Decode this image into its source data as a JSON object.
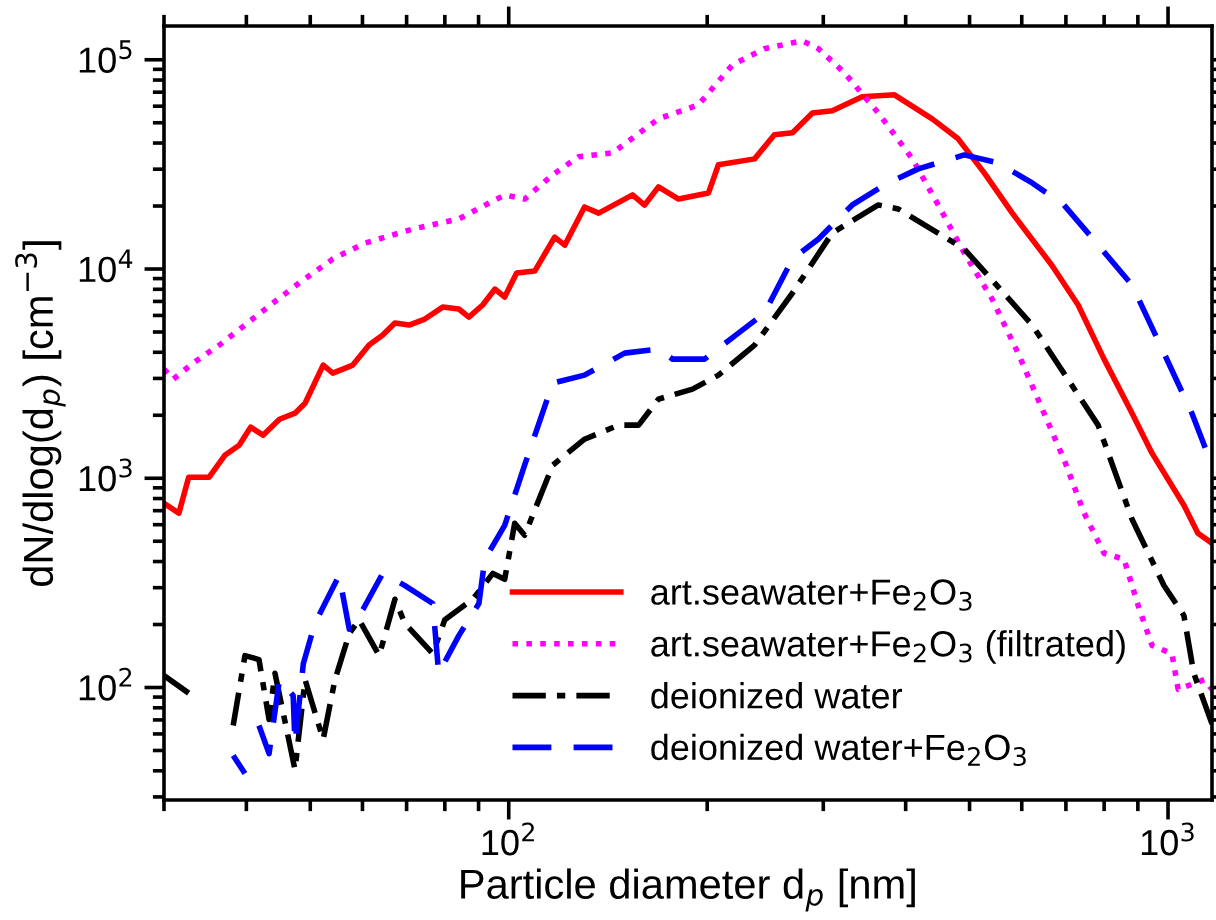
{
  "chart_data": {
    "type": "line",
    "xlabel": "Particle diameter d$_{p}$ [nm]",
    "ylabel": "dN/dlog(d$_{p}$) [cm$^{−3}$]",
    "log": "xy",
    "xlim": [
      30,
      1166
    ],
    "ylim": [
      29,
      145000
    ],
    "xticks": [
      {
        "value": 100,
        "label": "10$^{2}$"
      },
      {
        "value": 1000,
        "label": "10$^{3}$"
      }
    ],
    "yticks": [
      {
        "value": 100,
        "label": "10$^{2}$"
      },
      {
        "value": 1000,
        "label": "10$^{3}$"
      },
      {
        "value": 10000,
        "label": "10$^{4}$"
      },
      {
        "value": 100000,
        "label": "10$^{5}$"
      }
    ],
    "grid": false,
    "legend": "bottom right",
    "marker": "none",
    "series": [
      {
        "name": "art.seawater+Fe$_{2}$O$_{3}$",
        "color": "#ff0000",
        "line_style": "solid",
        "x": [
          30,
          31.6,
          32.7,
          35.1,
          37.1,
          39.0,
          40.6,
          42.4,
          44.9,
          47.4,
          49.1,
          52.3,
          54.1,
          58.0,
          61.4,
          64.4,
          67.2,
          70.6,
          74.6,
          79.4,
          84.0,
          87.0,
          91.3,
          95.3,
          98.6,
          102.8,
          109.5,
          117.4,
          121.6,
          130.3,
          136.9,
          154.1,
          160.7,
          168.7,
          181.0,
          200.9,
          208.0,
          236.0,
          252.9,
          269.4,
          288.8,
          309.6,
          343.6,
          384.6,
          438.8,
          480.5,
          526.3,
          580.4,
          666.8,
          730.6,
          799.8,
          881.9,
          945.6,
          1057,
          1110,
          1166
        ],
        "values": [
          759,
          681,
          1011,
          1011,
          1288,
          1438,
          1754,
          1606,
          1915,
          2046,
          2284,
          3475,
          3180,
          3475,
          4329,
          4833,
          5520,
          5395,
          5765,
          6577,
          6440,
          5890,
          6730,
          8020,
          7350,
          9570,
          9780,
          14200,
          13000,
          19800,
          18500,
          22600,
          20200,
          24700,
          21600,
          23100,
          31500,
          33600,
          43800,
          44800,
          55700,
          57000,
          66500,
          68000,
          52200,
          41900,
          28800,
          18500,
          10400,
          6730,
          3710,
          2046,
          1318,
          743,
          546,
          489
        ]
      },
      {
        "name": "art.seawater+Fe$_{2}$O$_{3}$ (filtrated)",
        "color": "#ff00ff",
        "line_style": "dotted",
        "x": [
          30,
          31.0,
          33.2,
          36.4,
          39.8,
          43.9,
          48.1,
          54.1,
          60.5,
          71.6,
          84.0,
          98.6,
          105.7,
          116.6,
          127.6,
          143.7,
          168.7,
          194.0,
          218.5,
          244.2,
          278.8,
          295.0,
          322.9,
          363.6,
          409.5,
          448.3,
          490.8,
          541.1,
          592.4,
          648.6,
          695.2,
          746.1,
          799.8,
          857.7,
          900.8,
          945.6,
          1014,
          1036,
          1135,
          1166
        ],
        "values": [
          3324,
          2977,
          3550,
          4330,
          5400,
          6880,
          8570,
          11170,
          13300,
          15540,
          17350,
          22600,
          21600,
          28200,
          34400,
          35900,
          52200,
          60900,
          94600,
          112900,
          123300,
          112900,
          86700,
          55700,
          33600,
          20200,
          11930,
          7180,
          3960,
          2046,
          1233,
          681,
          438,
          410,
          247,
          159,
          145,
          98,
          109,
          98
        ]
      },
      {
        "name": "deionized water",
        "color": "#000000",
        "line_style": "dashdot",
        "x": [
          30,
          32.7,
          35.0,
          38.2,
          39.8,
          41.8,
          43.3,
          44.2,
          47.4,
          49.1,
          52.3,
          54.5,
          57.3,
          59.3,
          63.6,
          67.2,
          69.6,
          76.7,
          80.0,
          88.2,
          94.6,
          98.6,
          102.1,
          105.7,
          116.6,
          130.3,
          146.8,
          157.4,
          168.7,
          190.0,
          208.0,
          236.0,
          269.4,
          309.6,
          363.6,
          389.9,
          490.8,
          622.2,
          783.4,
          881.9,
          985.9,
          1057,
          1094,
          1166
        ],
        "values": [
          114,
          94,
          null,
          65.8,
          142,
          136,
          70.3,
          117,
          40.5,
          109,
          56.4,
          109,
          181,
          211,
          142,
          264,
          202,
          145,
          211,
          264,
          351,
          329,
          609,
          534,
          1154,
          1537,
          1794,
          1794,
          2388,
          2667,
          3111,
          4330,
          7680,
          14870,
          20240,
          19370,
          12470,
          5400,
          1794,
          637,
          307,
          221,
          117,
          67
        ]
      },
      {
        "name": "deionized water+Fe$_{2}$O$_{3}$",
        "color": "#0000ff",
        "line_style": "dashed",
        "x": [
          38.2,
          39.8,
          41.0,
          41.8,
          43.3,
          44.9,
          47.1,
          47.4,
          48.8,
          50.8,
          55.3,
          57.3,
          60.1,
          64.4,
          69.6,
          76.7,
          78.3,
          84.0,
          90.1,
          92.0,
          98.6,
          105.7,
          116.6,
          130.3,
          149.9,
          168.7,
          177.2,
          198.2,
          223.0,
          244.2,
          269.4,
          295.0,
          332.0,
          371.4,
          418.0,
          490.8,
          552.4,
          622.2,
          695.2,
          783.4,
          881.9,
          985.9,
          1087,
          1166
        ],
        "values": [
          47.3,
          38.8,
          null,
          65.8,
          48.3,
          109,
          91.5,
          54.0,
          130,
          202,
          343,
          190,
          236,
          351,
          307,
          252,
          117,
          177,
          252,
          410,
          596,
          1154,
          2850,
          3111,
          3963,
          4140,
          3710,
          3710,
          4940,
          6150,
          11170,
          13920,
          20240,
          25230,
          30100,
          35100,
          32150,
          25780,
          20240,
          13030,
          8380,
          3963,
          2046,
          1154
        ]
      }
    ]
  }
}
